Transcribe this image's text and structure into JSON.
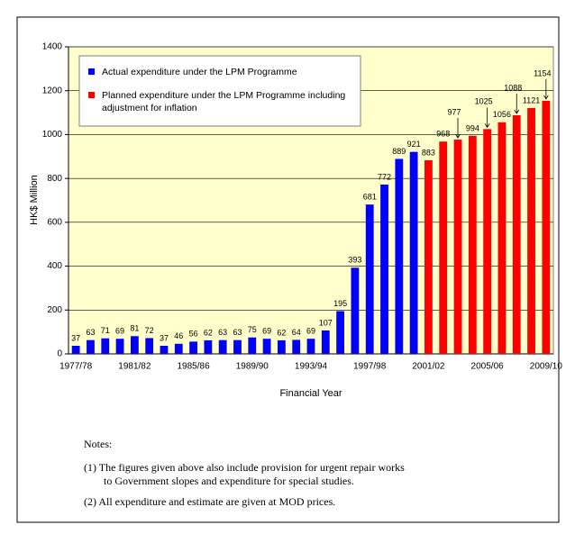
{
  "chart_data": {
    "type": "bar",
    "y_label": "HK$ Million",
    "x_label": "Financial Year",
    "categories": [
      "1977/78",
      null,
      null,
      null,
      "1981/82",
      null,
      null,
      null,
      "1985/86",
      null,
      null,
      null,
      "1989/90",
      null,
      null,
      null,
      "1993/94",
      null,
      null,
      null,
      "1997/98",
      null,
      null,
      null,
      "2001/02",
      null,
      null,
      null,
      "2005/06",
      null,
      null,
      null,
      "2009/10"
    ],
    "series": [
      {
        "name": "Actual expenditure under the LPM Programme",
        "color": "#0000ff",
        "values": [
          37,
          63,
          71,
          69,
          81,
          72,
          37,
          46,
          56,
          62,
          63,
          63,
          75,
          69,
          62,
          64,
          69,
          107,
          195,
          393,
          681,
          772,
          889,
          921,
          null,
          null,
          null,
          null,
          null,
          null,
          null,
          null,
          null
        ]
      },
      {
        "name": "Planned expenditure under the LPM Programme including adjustment for inflation",
        "color": "#ff0000",
        "values": [
          null,
          null,
          null,
          null,
          null,
          null,
          null,
          null,
          null,
          null,
          null,
          null,
          null,
          null,
          null,
          null,
          null,
          null,
          null,
          null,
          null,
          null,
          null,
          null,
          883,
          968,
          977,
          994,
          1025,
          1056,
          1088,
          1121,
          1154
        ]
      }
    ],
    "ylim": [
      0,
      1400
    ],
    "yticks": [
      0,
      200,
      400,
      600,
      800,
      1000,
      1200,
      1400
    ],
    "grid": true,
    "plot_background": "#ffffcc"
  },
  "notes": {
    "title": "Notes:",
    "items": [
      "(1) The figures given above also include provision for urgent repair works",
      "to Government slopes and expenditure for special studies.",
      "(2) All expenditure and estimate are given at MOD prices."
    ]
  }
}
